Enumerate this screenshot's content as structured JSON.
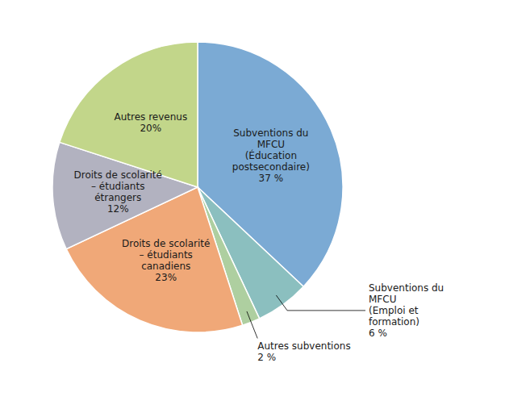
{
  "chart_data": {
    "type": "pie",
    "categories": [
      "Subventions du\nMFCU\n(Éducation\npostsecondaire)",
      "Subventions du\nMFCU\n(Emploi et\nformation)",
      "Autres subventions",
      "Droits de scolarité\n– étudiants\ncanadiens",
      "Droits de scolarité\n– étudiants\nétrangers",
      "Autres revenus"
    ],
    "values": [
      37,
      6,
      2,
      23,
      12,
      20
    ],
    "value_labels": [
      "37 %",
      "6 %",
      "2 %",
      "23%",
      "12%",
      "20%"
    ],
    "colors": [
      "#7BAAD4",
      "#8BBFBF",
      "#AECFA0",
      "#F0A878",
      "#B2B2C0",
      "#C2D68A"
    ],
    "data_labels": true
  }
}
